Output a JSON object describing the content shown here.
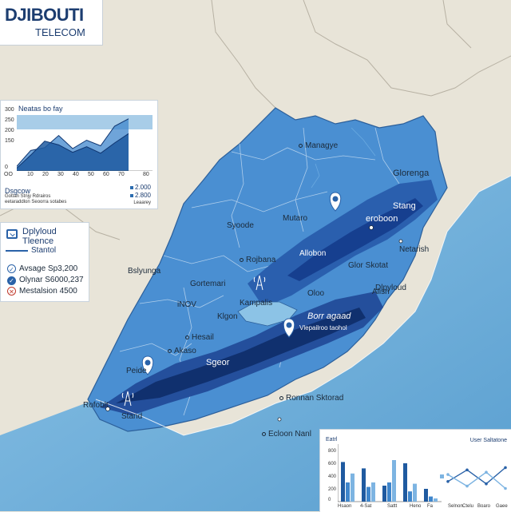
{
  "logo": {
    "line1": "DJIBOUTI",
    "line2": "TELECOM"
  },
  "map_labels": [
    {
      "text": "Managye",
      "kind": "dot",
      "pos": "north-center"
    },
    {
      "text": "Glorenga",
      "kind": "plain",
      "pos": "north-east"
    },
    {
      "text": "Stang",
      "kind": "big",
      "pos": "east"
    },
    {
      "text": "Mutaro",
      "kind": "plain",
      "pos": "center"
    },
    {
      "text": "Syoode",
      "kind": "plain",
      "pos": "west-center"
    },
    {
      "text": "eroboon",
      "kind": "big",
      "pos": "east-center"
    },
    {
      "text": "Netarish",
      "kind": "dot",
      "pos": "east"
    },
    {
      "text": "Rojbana",
      "kind": "dot",
      "pos": "center"
    },
    {
      "text": "Allobon",
      "kind": "plain",
      "pos": "center-east"
    },
    {
      "text": "Glor Skotat",
      "kind": "plain",
      "pos": "east"
    },
    {
      "text": "Bslyunga",
      "kind": "plain",
      "pos": "west"
    },
    {
      "text": "Gortemari",
      "kind": "plain",
      "pos": "center"
    },
    {
      "text": "Dlpyloud",
      "kind": "plain",
      "pos": "east"
    },
    {
      "text": "Alisn",
      "kind": "plain",
      "pos": "east"
    },
    {
      "text": "Oloo",
      "kind": "plain",
      "pos": "center-east"
    },
    {
      "text": "iNOV",
      "kind": "plain",
      "pos": "center-west"
    },
    {
      "text": "Kampalis",
      "kind": "plain",
      "pos": "center"
    },
    {
      "text": "Klgon",
      "kind": "plain",
      "pos": "center"
    },
    {
      "text": "Borr agaad",
      "kind": "italic",
      "pos": "south-east"
    },
    {
      "text": "Vlepailroo taohol",
      "kind": "plain",
      "pos": "south-east"
    },
    {
      "text": "Hesail",
      "kind": "dot",
      "pos": "south-west"
    },
    {
      "text": "Akaso",
      "kind": "dot",
      "pos": "south-west"
    },
    {
      "text": "Sgeor",
      "kind": "big",
      "pos": "south"
    },
    {
      "text": "Peide",
      "kind": "plain",
      "pos": "south-west"
    },
    {
      "text": "Rofoblt",
      "kind": "plain",
      "pos": "south-west"
    },
    {
      "text": "Stand",
      "kind": "plain",
      "pos": "south-west"
    },
    {
      "text": "Ronnan Sktorad",
      "kind": "dot",
      "pos": "south"
    },
    {
      "text": "Ecloon Nanl",
      "kind": "dot",
      "pos": "south"
    }
  ],
  "chart_data": [
    {
      "type": "area",
      "title": "Neatas bo fay",
      "y_ticks": [
        "300",
        "250",
        "200",
        "150",
        "0"
      ],
      "x_ticks": [
        "OO",
        "10",
        "20",
        "30",
        "40",
        "50",
        "60",
        "70",
        "80"
      ],
      "ylim": [
        0,
        300
      ],
      "x": [
        0,
        10,
        20,
        30,
        40,
        50,
        60,
        70,
        80
      ],
      "series": [
        {
          "values": [
            25,
            110,
            125,
            190,
            120,
            165,
            135,
            240,
            280
          ]
        },
        {
          "values": [
            15,
            85,
            160,
            140,
            100,
            130,
            95,
            150,
            200
          ]
        }
      ],
      "legend": {
        "title": "Dsgcow",
        "sub1": "Gottan Stnjy Rdrairos",
        "sub2": "eetaraddlon Seoorra sotabes",
        "value1": "2.000",
        "value2": "2.800",
        "note": "Leaarey"
      }
    },
    {
      "type": "bar",
      "title": "Eatrl",
      "y_ticks": [
        "800",
        "600",
        "400",
        "200",
        "0"
      ],
      "ylim": [
        0,
        900
      ],
      "categories": [
        "Hsaon",
        "4-Sat",
        "Sattt",
        "Heno",
        "Fa"
      ],
      "series": [
        {
          "values": [
            620,
            520,
            250,
            600,
            200
          ]
        },
        {
          "values": [
            300,
            230,
            300,
            160,
            80
          ]
        },
        {
          "values": [
            440,
            300,
            650,
            280,
            50
          ]
        }
      ]
    },
    {
      "type": "line",
      "title": "User Saltatone",
      "x_ticks": [
        "Selnon",
        "Ctelu",
        "Boaro",
        "Gaee"
      ],
      "series": [
        {
          "values": [
            40,
            65,
            35,
            70
          ]
        },
        {
          "values": [
            55,
            30,
            60,
            25
          ]
        }
      ]
    }
  ],
  "stats": {
    "title_line1": "Dplyloud",
    "title_line2": "Tleence",
    "subtitle": "Stantol",
    "rows": [
      {
        "icon": "check-icon",
        "text": "Avsage Sp3,200"
      },
      {
        "icon": "check-icon",
        "text": "Olynar S6000,237"
      },
      {
        "icon": "cross-icon",
        "text": "Mestalsion 4500"
      }
    ]
  },
  "colors": {
    "land": "#e8e4d8",
    "sea": "#6aaed8",
    "country": "#3f86cc",
    "coverage": "#1c3f8c",
    "accent": "#2a62a8"
  }
}
